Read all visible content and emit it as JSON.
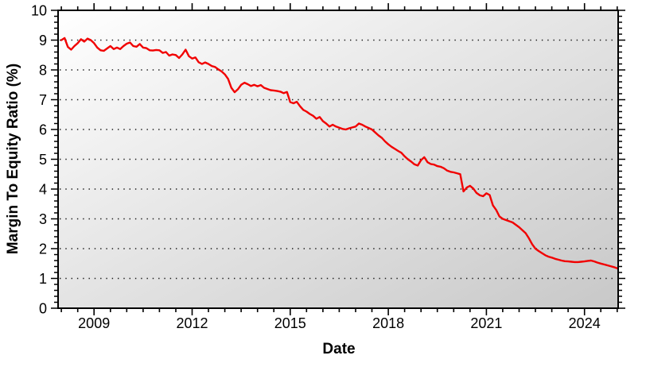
{
  "chart_data": {
    "type": "line",
    "title": "",
    "xlabel": "Date",
    "ylabel": "Margin To Equity Ratio (%)",
    "x_range": [
      2007.9,
      2025.03
    ],
    "y_range": [
      0,
      10
    ],
    "x_major_ticks": [
      2009,
      2012,
      2015,
      2018,
      2021,
      2024
    ],
    "x_major_tick_labels": [
      "2009",
      "2012",
      "2015",
      "2018",
      "2021",
      "2024"
    ],
    "x_minor_tick_interval": 0.5,
    "y_major_ticks": [
      0,
      1,
      2,
      3,
      4,
      5,
      6,
      7,
      8,
      9,
      10
    ],
    "y_major_tick_labels": [
      "0",
      "1",
      "2",
      "3",
      "4",
      "5",
      "6",
      "7",
      "8",
      "9",
      "10"
    ],
    "y_minor_tick_interval": 0.2,
    "grid": {
      "horizontal_at": [
        1,
        2,
        3,
        4,
        5,
        6,
        7,
        8,
        9
      ],
      "style": "dotted",
      "color": "#1a1a1a"
    },
    "legend": "none",
    "plot_background": {
      "gradient_from": "#ffffff",
      "gradient_to": "#c8c8c8",
      "direction": "diagonal-top-left-to-bottom-right"
    },
    "axis_color": "#000000",
    "series": [
      {
        "name": "Margin To Equity Ratio",
        "color": "#f10000",
        "x_start": 2008.0,
        "x_step": 0.1,
        "x_end": 2025.0,
        "values": [
          9.0,
          9.07,
          8.77,
          8.68,
          8.8,
          8.9,
          9.03,
          8.95,
          9.05,
          9.0,
          8.9,
          8.75,
          8.66,
          8.64,
          8.72,
          8.8,
          8.7,
          8.75,
          8.7,
          8.8,
          8.88,
          8.92,
          8.8,
          8.78,
          8.87,
          8.75,
          8.73,
          8.66,
          8.65,
          8.67,
          8.66,
          8.57,
          8.6,
          8.48,
          8.52,
          8.5,
          8.4,
          8.52,
          8.68,
          8.46,
          8.38,
          8.42,
          8.26,
          8.2,
          8.25,
          8.2,
          8.13,
          8.1,
          8.02,
          7.95,
          7.85,
          7.7,
          7.4,
          7.25,
          7.35,
          7.5,
          7.57,
          7.52,
          7.46,
          7.5,
          7.45,
          7.49,
          7.4,
          7.36,
          7.32,
          7.31,
          7.29,
          7.27,
          7.22,
          7.26,
          6.92,
          6.88,
          6.93,
          6.78,
          6.66,
          6.6,
          6.52,
          6.46,
          6.36,
          6.42,
          6.28,
          6.2,
          6.1,
          6.16,
          6.1,
          6.06,
          6.02,
          6.0,
          6.04,
          6.07,
          6.1,
          6.2,
          6.16,
          6.1,
          6.05,
          6.0,
          5.9,
          5.8,
          5.72,
          5.6,
          5.5,
          5.42,
          5.35,
          5.28,
          5.22,
          5.1,
          5.0,
          4.92,
          4.83,
          4.79,
          4.97,
          5.07,
          4.9,
          4.84,
          4.82,
          4.77,
          4.75,
          4.7,
          4.62,
          4.58,
          4.56,
          4.53,
          4.5,
          3.92,
          4.05,
          4.11,
          4.02,
          3.87,
          3.79,
          3.76,
          3.86,
          3.8,
          3.45,
          3.3,
          3.08,
          3.0,
          2.96,
          2.92,
          2.88,
          2.8,
          2.72,
          2.62,
          2.52,
          2.35,
          2.15,
          2.0,
          1.92,
          1.85,
          1.78,
          1.73,
          1.7,
          1.66,
          1.63,
          1.6,
          1.58,
          1.57,
          1.56,
          1.55,
          1.55,
          1.56,
          1.57,
          1.59,
          1.6,
          1.57,
          1.53,
          1.5,
          1.47,
          1.44,
          1.41,
          1.38,
          1.34
        ]
      }
    ]
  }
}
